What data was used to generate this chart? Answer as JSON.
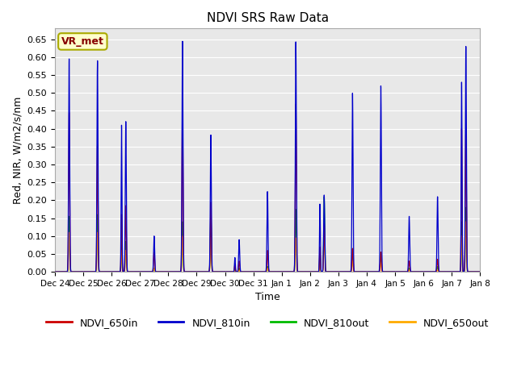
{
  "title": "NDVI SRS Raw Data",
  "ylabel": "Red, NIR, W/m2/s/nm",
  "xlabel": "Time",
  "ylim": [
    0.0,
    0.68
  ],
  "yticks": [
    0.0,
    0.05,
    0.1,
    0.15,
    0.2,
    0.25,
    0.3,
    0.35,
    0.4,
    0.45,
    0.5,
    0.55,
    0.6,
    0.65
  ],
  "bg_color": "#e8e8e8",
  "colors": {
    "NDVI_650in": "#cc0000",
    "NDVI_810in": "#0000cc",
    "NDVI_810out": "#00bb00",
    "NDVI_650out": "#ffaa00"
  },
  "annotation_text": "VR_met",
  "annotation_color": "#880000",
  "annotation_bg": "#ffffcc",
  "annotation_border": "#aaaa00",
  "day_labels": [
    "Dec 24",
    "Dec 25",
    "Dec 26",
    "Dec 27",
    "Dec 28",
    "Dec 29",
    "Dec 30",
    "Dec 31",
    "Jan 1",
    "Jan 2",
    "Jan 3",
    "Jan 4",
    "Jan 5",
    "Jan 6",
    "Jan 7",
    "Jan 8"
  ],
  "peak_810in": [
    0.595,
    0.59,
    0.42,
    0.1,
    0.645,
    0.383,
    0.09,
    0.225,
    0.645,
    0.215,
    0.5,
    0.52,
    0.155,
    0.21,
    0.63,
    0.0
  ],
  "peak_650in": [
    0.445,
    0.355,
    0.185,
    0.055,
    0.465,
    0.195,
    0.03,
    0.06,
    0.47,
    0.135,
    0.065,
    0.055,
    0.03,
    0.035,
    0.39,
    0.0
  ],
  "peak_810out": [
    0.155,
    0.16,
    0.085,
    0.01,
    0.14,
    0.17,
    0.01,
    0.015,
    0.175,
    0.21,
    0.065,
    0.055,
    0.01,
    0.015,
    0.18,
    0.0
  ],
  "peak_650out": [
    0.11,
    0.11,
    0.06,
    0.01,
    0.1,
    0.1,
    0.005,
    0.01,
    0.095,
    0.1,
    0.03,
    0.025,
    0.005,
    0.005,
    0.14,
    0.0
  ],
  "peak2_810in": [
    0.0,
    0.0,
    0.41,
    0.0,
    0.0,
    0.0,
    0.04,
    0.0,
    0.0,
    0.19,
    0.0,
    0.0,
    0.0,
    0.0,
    0.53,
    0.0
  ],
  "peak2_650in": [
    0.0,
    0.0,
    0.16,
    0.0,
    0.0,
    0.0,
    0.02,
    0.0,
    0.0,
    0.07,
    0.0,
    0.0,
    0.0,
    0.0,
    0.4,
    0.0
  ],
  "peak2_810out": [
    0.0,
    0.0,
    0.08,
    0.0,
    0.0,
    0.0,
    0.008,
    0.0,
    0.0,
    0.06,
    0.0,
    0.0,
    0.0,
    0.0,
    0.14,
    0.0
  ],
  "peak2_650out": [
    0.0,
    0.0,
    0.06,
    0.0,
    0.0,
    0.0,
    0.005,
    0.0,
    0.0,
    0.03,
    0.0,
    0.0,
    0.0,
    0.0,
    0.1,
    0.0
  ]
}
